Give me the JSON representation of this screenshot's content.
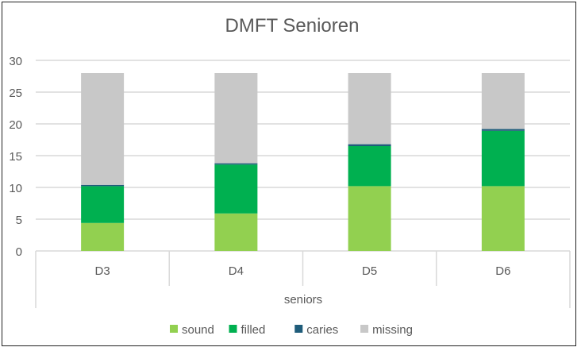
{
  "chart_data": {
    "type": "bar",
    "stacked": true,
    "title": "DMFT Senioren",
    "xlabel": "seniors",
    "ylabel": "",
    "categories": [
      "D3",
      "D4",
      "D5",
      "D6"
    ],
    "ylim": [
      0,
      30
    ],
    "yticks": [
      0,
      5,
      10,
      15,
      20,
      25,
      30
    ],
    "grid": true,
    "legend": "bottom",
    "series": [
      {
        "name": "sound",
        "color": "#92D050",
        "values": [
          4.4,
          5.9,
          10.2,
          10.2
        ]
      },
      {
        "name": "filled",
        "color": "#00B050",
        "values": [
          5.8,
          7.7,
          6.3,
          8.7
        ]
      },
      {
        "name": "caries",
        "color": "#1F5C7A",
        "values": [
          0.2,
          0.2,
          0.3,
          0.3
        ]
      },
      {
        "name": "missing",
        "color": "#C8C8C8",
        "values": [
          17.6,
          14.2,
          11.2,
          8.8
        ]
      }
    ]
  }
}
